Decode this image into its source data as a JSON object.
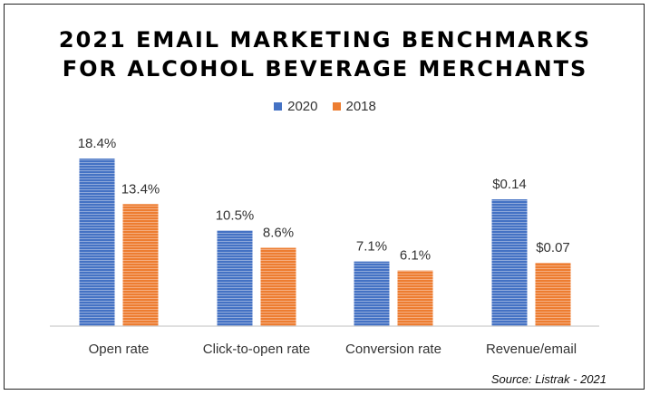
{
  "chart_data": {
    "type": "bar",
    "title_line1": "2021 EMAIL MARKETING BENCHMARKS",
    "title_line2": "FOR ALCOHOL BEVERAGE MERCHANTS",
    "categories": [
      "Open rate",
      "Click-to-open rate",
      "Conversion rate",
      "Revenue/email"
    ],
    "series": [
      {
        "name": "2020",
        "color": "#4472c4",
        "values": [
          18.4,
          10.5,
          7.1,
          0.14
        ],
        "labels": [
          "18.4%",
          "10.5%",
          "7.1%",
          "$0.14"
        ]
      },
      {
        "name": "2018",
        "color": "#ed7d31",
        "values": [
          13.4,
          8.6,
          6.1,
          0.07
        ],
        "labels": [
          "13.4%",
          "8.6%",
          "6.1%",
          "$0.07"
        ]
      }
    ],
    "legend_position": "top",
    "grid": false,
    "source": "Source: Listrak - 2021"
  }
}
